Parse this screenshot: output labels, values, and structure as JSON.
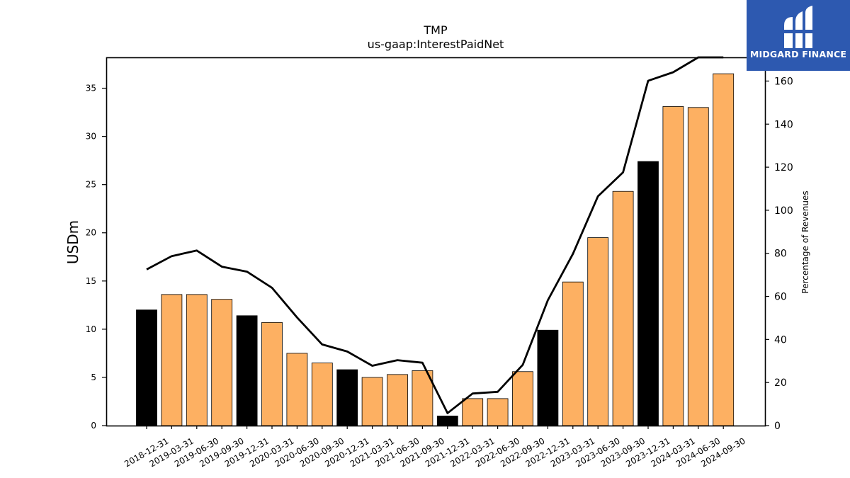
{
  "chart_data": {
    "type": "bar",
    "title": "TMP",
    "subtitle": "us-gaap:InterestPaidNet",
    "ylabel": "USDm",
    "y2label": "Percentage of Revenues",
    "ylim": [
      0,
      38.2
    ],
    "y2lim": [
      0,
      171
    ],
    "yticks": [
      0,
      5,
      10,
      15,
      20,
      25,
      30,
      35
    ],
    "y2ticks": [
      0,
      20,
      40,
      60,
      80,
      100,
      120,
      140,
      160
    ],
    "categories": [
      "2018-12-31",
      "2019-03-31",
      "2019-06-30",
      "2019-09-30",
      "2019-12-31",
      "2020-03-31",
      "2020-06-30",
      "2020-09-30",
      "2020-12-31",
      "2021-03-31",
      "2021-06-30",
      "2021-09-30",
      "2021-12-31",
      "2022-03-31",
      "2022-06-30",
      "2022-09-30",
      "2022-12-31",
      "2023-03-31",
      "2023-06-30",
      "2023-09-30",
      "2023-12-31",
      "2024-03-31",
      "2024-06-30",
      "2024-09-30"
    ],
    "series": [
      {
        "type": "bar",
        "values": [
          12.0,
          13.6,
          13.6,
          13.1,
          11.4,
          10.7,
          7.5,
          6.5,
          5.8,
          5.0,
          5.3,
          5.7,
          1.0,
          2.8,
          2.8,
          5.6,
          9.9,
          14.9,
          19.5,
          24.3,
          27.4,
          33.1,
          33.0,
          36.5
        ]
      },
      {
        "type": "line",
        "axis": "right",
        "values": [
          72.5,
          78.7,
          81.3,
          73.8,
          71.5,
          64.0,
          50.2,
          37.7,
          34.4,
          27.8,
          30.4,
          29.2,
          5.8,
          14.9,
          15.7,
          28.2,
          58.2,
          79.7,
          106.5,
          117.6,
          160.1,
          164.1,
          171.0,
          171.0
        ]
      }
    ],
    "bar_colors": {
      "year_end": "#000000",
      "quarter": "#fdb062"
    },
    "year_end_flags": [
      true,
      false,
      false,
      false,
      true,
      false,
      false,
      false,
      true,
      false,
      false,
      false,
      true,
      false,
      false,
      false,
      true,
      false,
      false,
      false,
      true,
      false,
      false,
      false
    ],
    "line_color": "#000000",
    "grid": false,
    "legend": "none"
  },
  "logo": {
    "text": "MIDGARD FINANCE",
    "background": "#2d59b0"
  }
}
